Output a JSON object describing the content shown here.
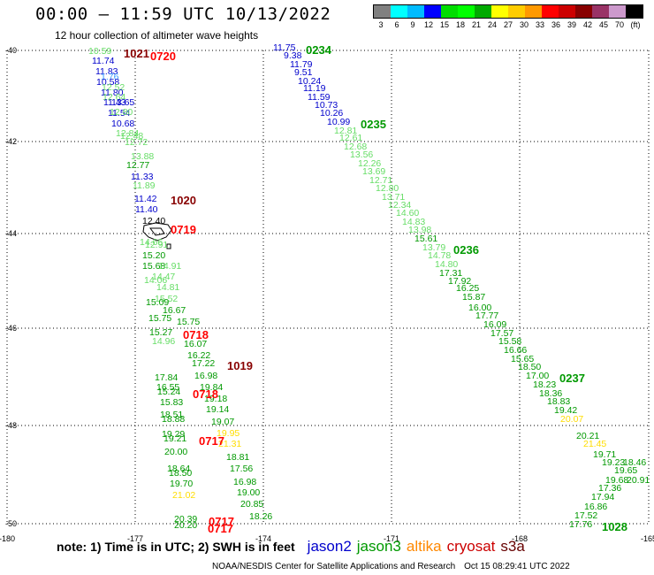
{
  "header": {
    "title": "00:00 – 11:59 UTC 10/13/2022",
    "subtitle": "12 hour collection of altimeter wave heights"
  },
  "legend": {
    "colors": [
      "#808080",
      "#00ffff",
      "#00bbff",
      "#0000ff",
      "#00dd00",
      "#00ff00",
      "#00aa00",
      "#ffff00",
      "#ffcc00",
      "#ff9900",
      "#ff0000",
      "#cc0000",
      "#880000",
      "#993366",
      "#cc99cc",
      "#000000"
    ],
    "labels": [
      "3",
      "6",
      "9",
      "12",
      "15",
      "18",
      "21",
      "24",
      "27",
      "30",
      "33",
      "36",
      "39",
      "42",
      "45",
      "70",
      "(ft)"
    ]
  },
  "map": {
    "lat_labels": [
      "-40",
      "-42",
      "-44",
      "-46",
      "-48",
      "-50"
    ],
    "lon_labels": [
      "-180",
      "-177",
      "-174",
      "-171",
      "-168",
      "-165"
    ],
    "obs": [
      [
        "10.59",
        "#66dd66",
        100,
        61
      ],
      [
        "11.74",
        "#0000cc",
        104,
        72
      ],
      [
        "11.83",
        "#0000cc",
        108,
        84
      ],
      [
        "1.76",
        "#3399ff",
        114,
        90
      ],
      [
        "10.58",
        "#0000cc",
        109,
        96
      ],
      [
        "12.52",
        "#66dd66",
        115,
        102
      ],
      [
        "11.80",
        "#0000cc",
        114,
        108
      ],
      [
        "12.64",
        "#66dd66",
        116,
        113
      ],
      [
        "11.43",
        "#0000cc",
        117,
        119
      ],
      [
        "13.65",
        "#0000cc",
        126,
        119
      ],
      [
        "11.54",
        "#0000cc",
        122,
        131
      ],
      [
        "12.80",
        "#66dd66",
        124,
        130
      ],
      [
        "10.68",
        "#0000cc",
        126,
        143
      ],
      [
        "12.84",
        "#66dd66",
        131,
        154
      ],
      [
        "12.48",
        "#66dd66",
        136,
        157
      ],
      [
        "12.72",
        "#66dd66",
        141,
        164
      ],
      [
        "13.88",
        "#66dd66",
        148,
        180
      ],
      [
        "12.77",
        "#009900",
        143,
        190
      ],
      [
        "11.33",
        "#0000cc",
        148,
        203
      ],
      [
        "11.89",
        "#66dd66",
        150,
        213
      ],
      [
        "11.42",
        "#0000cc",
        152,
        228
      ],
      [
        "11.40",
        "#0000cc",
        153,
        240
      ],
      [
        "12.40",
        "#000000",
        161,
        253
      ],
      [
        "14.66",
        "#66dd66",
        158,
        277
      ],
      [
        "12.91",
        "#66dd66",
        164,
        280
      ],
      [
        "15.20",
        "#009900",
        161,
        292
      ],
      [
        "15.68",
        "#009900",
        161,
        304
      ],
      [
        "14.91",
        "#66dd66",
        179,
        304
      ],
      [
        "14.47",
        "#66dd66",
        172,
        316
      ],
      [
        "14.06",
        "#66dd66",
        163,
        320
      ],
      [
        "14.81",
        "#66dd66",
        177,
        328
      ],
      [
        "15.52",
        "#66dd66",
        175,
        341
      ],
      [
        "15.09",
        "#009900",
        165,
        345
      ],
      [
        "16.67",
        "#009900",
        184,
        354
      ],
      [
        "15.75",
        "#009900",
        168,
        363
      ],
      [
        "15.75",
        "#009900",
        200,
        367
      ],
      [
        "15.27",
        "#009900",
        169,
        379
      ],
      [
        "14.96",
        "#66dd66",
        172,
        389
      ],
      [
        "16.07",
        "#009900",
        208,
        392
      ],
      [
        "16.22",
        "#009900",
        212,
        405
      ],
      [
        "17.22",
        "#009900",
        217,
        414
      ],
      [
        "17.84",
        "#009900",
        175,
        430
      ],
      [
        "16.98",
        "#009900",
        220,
        428
      ],
      [
        "16.55",
        "#009900",
        177,
        441
      ],
      [
        "19.84",
        "#009900",
        226,
        441
      ],
      [
        "15.24",
        "#009900",
        178,
        446
      ],
      [
        "19.18",
        "#009900",
        231,
        454
      ],
      [
        "15.83",
        "#009900",
        181,
        458
      ],
      [
        "19.14",
        "#009900",
        233,
        466
      ],
      [
        "18.51",
        "#009900",
        181,
        472
      ],
      [
        "18.88",
        "#009900",
        183,
        477
      ],
      [
        "19.07",
        "#009900",
        239,
        480
      ],
      [
        "19.95",
        "#ffdd00",
        245,
        493
      ],
      [
        "19.29",
        "#009900",
        183,
        494
      ],
      [
        "19.21",
        "#009900",
        185,
        499
      ],
      [
        "21.31",
        "#ffdd00",
        247,
        505
      ],
      [
        "20.00",
        "#009900",
        186,
        514
      ],
      [
        "18.81",
        "#009900",
        256,
        520
      ],
      [
        "18.64",
        "#009900",
        189,
        533
      ],
      [
        "17.56",
        "#009900",
        260,
        533
      ],
      [
        "18.50",
        "#009900",
        191,
        538
      ],
      [
        "16.98",
        "#009900",
        264,
        548
      ],
      [
        "19.70",
        "#009900",
        192,
        550
      ],
      [
        "19.00",
        "#009900",
        268,
        560
      ],
      [
        "21.02",
        "#ffdd00",
        195,
        563
      ],
      [
        "20.85",
        "#009900",
        272,
        573
      ],
      [
        "18.26",
        "#009900",
        282,
        587
      ],
      [
        "20.39",
        "#009900",
        197,
        590
      ],
      [
        "20.20",
        "#009900",
        197,
        597
      ],
      [
        "11.75",
        "#0000cc",
        309,
        57
      ],
      [
        "9.38",
        "#0000cc",
        321,
        66
      ],
      [
        "11.79",
        "#0000cc",
        328,
        76
      ],
      [
        "9.51",
        "#0000cc",
        333,
        85
      ],
      [
        "10.24",
        "#0000cc",
        337,
        95
      ],
      [
        "11.19",
        "#0000cc",
        343,
        103
      ],
      [
        "11.59",
        "#0000cc",
        348,
        113
      ],
      [
        "10.73",
        "#0000cc",
        356,
        122
      ],
      [
        "10.26",
        "#0000cc",
        362,
        131
      ],
      [
        "10.99",
        "#0000cc",
        370,
        141
      ],
      [
        "12.81",
        "#66dd66",
        378,
        151
      ],
      [
        "12.61",
        "#66dd66",
        384,
        159
      ],
      [
        "12.68",
        "#66dd66",
        389,
        169
      ],
      [
        "13.56",
        "#66dd66",
        396,
        178
      ],
      [
        "12.26",
        "#66dd66",
        405,
        188
      ],
      [
        "13.69",
        "#66dd66",
        410,
        197
      ],
      [
        "12.71",
        "#66dd66",
        418,
        207
      ],
      [
        "12.80",
        "#66dd66",
        425,
        216
      ],
      [
        "13.71",
        "#66dd66",
        432,
        226
      ],
      [
        "12.34",
        "#66dd66",
        439,
        235
      ],
      [
        "14.60",
        "#66dd66",
        448,
        244
      ],
      [
        "14.83",
        "#66dd66",
        455,
        254
      ],
      [
        "13.98",
        "#66dd66",
        462,
        263
      ],
      [
        "15.61",
        "#009900",
        469,
        273
      ],
      [
        "13.79",
        "#66dd66",
        478,
        283
      ],
      [
        "14.78",
        "#66dd66",
        484,
        292
      ],
      [
        "14.80",
        "#66dd66",
        492,
        302
      ],
      [
        "17.31",
        "#009900",
        497,
        312
      ],
      [
        "17.92",
        "#009900",
        507,
        321
      ],
      [
        "16.25",
        "#009900",
        516,
        329
      ],
      [
        "15.87",
        "#009900",
        523,
        339
      ],
      [
        "16.00",
        "#009900",
        530,
        351
      ],
      [
        "17.77",
        "#009900",
        538,
        360
      ],
      [
        "16.09",
        "#009900",
        547,
        370
      ],
      [
        "17.57",
        "#009900",
        555,
        380
      ],
      [
        "15.58",
        "#009900",
        564,
        389
      ],
      [
        "16.66",
        "#009900",
        570,
        399
      ],
      [
        "15.65",
        "#009900",
        578,
        409
      ],
      [
        "18.50",
        "#009900",
        586,
        418
      ],
      [
        "17.00",
        "#009900",
        595,
        428
      ],
      [
        "18.23",
        "#009900",
        603,
        438
      ],
      [
        "18.36",
        "#009900",
        610,
        448
      ],
      [
        "18.83",
        "#009900",
        619,
        457
      ],
      [
        "19.42",
        "#009900",
        627,
        467
      ],
      [
        "20.07",
        "#ffdd00",
        634,
        477
      ],
      [
        "20.21",
        "#009900",
        652,
        496
      ],
      [
        "21.45",
        "#ffdd00",
        660,
        505
      ],
      [
        "19.71",
        "#009900",
        671,
        517
      ],
      [
        "19.23",
        "#009900",
        681,
        526
      ],
      [
        "18.46",
        "#009900",
        705,
        526
      ],
      [
        "19.65",
        "#009900",
        695,
        535
      ],
      [
        "19.68",
        "#009900",
        685,
        546
      ],
      [
        "20.91",
        "#009900",
        709,
        546
      ],
      [
        "17.36",
        "#009900",
        677,
        555
      ],
      [
        "17.94",
        "#009900",
        669,
        565
      ],
      [
        "16.86",
        "#009900",
        661,
        576
      ],
      [
        "17.52",
        "#009900",
        650,
        586
      ],
      [
        "17.76",
        "#009900",
        644,
        596
      ]
    ],
    "tags": [
      [
        "1021",
        "#880000",
        140,
        65
      ],
      [
        "0720",
        "#ff0000",
        170,
        68
      ],
      [
        "0234",
        "#009900",
        346,
        61
      ],
      [
        "0235",
        "#009900",
        408,
        145
      ],
      [
        "1020",
        "#880000",
        193,
        231
      ],
      [
        "0719",
        "#ff0000",
        193,
        264
      ],
      [
        "0236",
        "#009900",
        513,
        287
      ],
      [
        "0718",
        "#ff0000",
        207,
        383
      ],
      [
        "1019",
        "#880000",
        257,
        418
      ],
      [
        "0718",
        "#ff0000",
        218,
        450
      ],
      [
        "0717",
        "#ff0000",
        225,
        503
      ],
      [
        "0717",
        "#ff0000",
        236,
        594
      ],
      [
        "0717",
        "#ff0000",
        235,
        602
      ],
      [
        "0237",
        "#009900",
        633,
        432
      ],
      [
        "1028",
        "#009900",
        681,
        600
      ]
    ]
  },
  "note": {
    "text": "note: 1) Time is in UTC; 2) SWH is in feet",
    "jason2": "jason2",
    "jason3": "jason3",
    "altika": "altika",
    "cryosat": "cryosat",
    "s3a": "s3a"
  },
  "footer": {
    "credit": "NOAA/NESDIS Center for Satellite Applications and Research",
    "date": "Oct 15 08:29:41 UTC 2022"
  }
}
